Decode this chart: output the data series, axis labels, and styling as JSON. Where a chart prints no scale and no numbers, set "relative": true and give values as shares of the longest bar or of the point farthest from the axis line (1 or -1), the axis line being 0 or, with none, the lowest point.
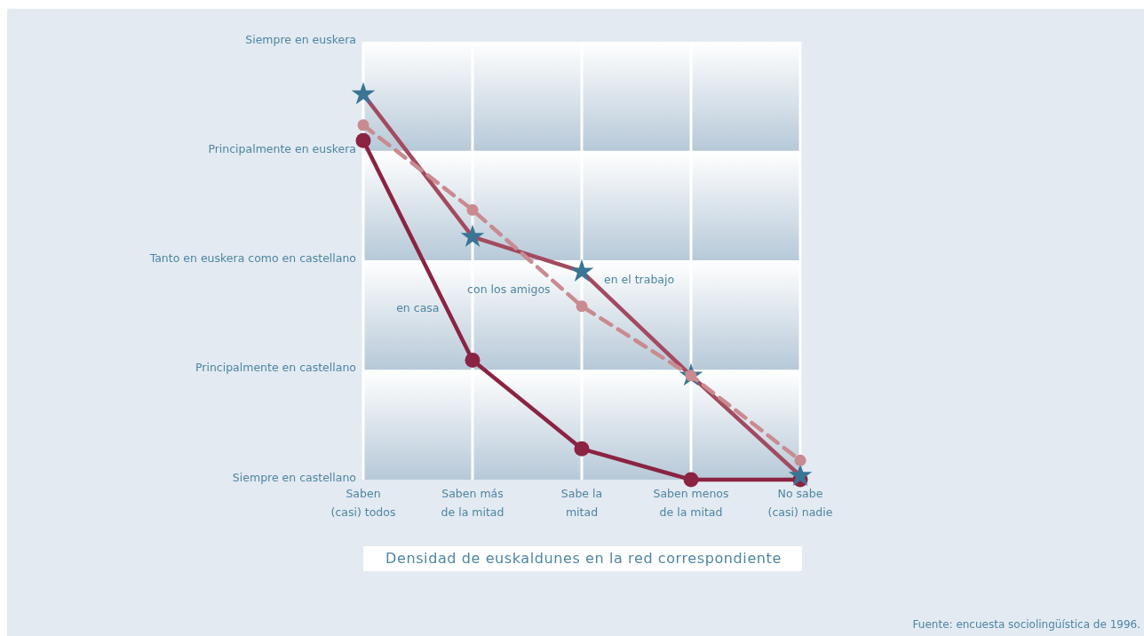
{
  "chart_data": {
    "type": "line",
    "relative": true,
    "xlabel": "Densidad de euskaldunes en la red correspondiente",
    "categories": [
      "Saben\n(casi) todos",
      "Saben más\nde la mitad",
      "Sabe la\nmitad",
      "Saben menos\nde la mitad",
      "No sabe\n(casi) nadie"
    ],
    "series": [
      {
        "name": "en casa",
        "color": "#8b2342",
        "values": [
          0.88,
          0.31,
          0.08,
          0,
          0
        ],
        "marker": "circle",
        "line_style": "solid"
      },
      {
        "name": "en el trabajo",
        "color": "#a34a60",
        "colors": [
          "#3a7595",
          "#3a7595",
          "#3a7595",
          "#3a7595",
          "#3a7595"
        ],
        "values": [
          1,
          0.63,
          0.54,
          0.27,
          0.01
        ],
        "marker": "star",
        "line_style": "solid"
      },
      {
        "name": "con los amigos",
        "color": "#c98a90",
        "values": [
          0.92,
          0.7,
          0.45,
          0.27,
          0.05
        ],
        "marker": "circle",
        "line_style": "dashed"
      }
    ],
    "grid": "x",
    "annotations": [
      "Siempre en euskera",
      "Principalmente en euskera",
      "Tanto en euskera como en castellano",
      "Principalmente en castellano",
      "Siempre en castellano",
      "Fuente: encuesta sociolingüística de 1996."
    ]
  }
}
